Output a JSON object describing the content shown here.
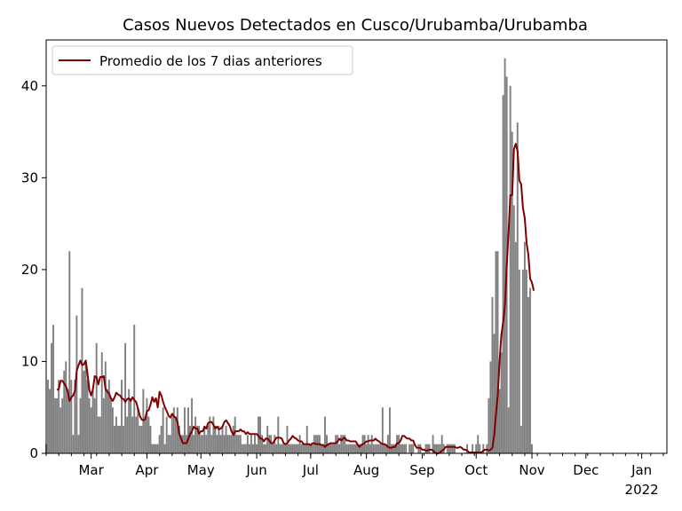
{
  "chart_data": {
    "type": "bar",
    "title": "Casos Nuevos Detectados en Cusco/Urubamba/Urubamba",
    "xlabel": "",
    "ylabel": "",
    "ylim": [
      0,
      45
    ],
    "y_ticks": [
      0,
      10,
      20,
      30,
      40
    ],
    "x_range_days": [
      0,
      345
    ],
    "x_ticks": [
      {
        "label": "Mar",
        "day": 25
      },
      {
        "label": "Apr",
        "day": 56
      },
      {
        "label": "May",
        "day": 86
      },
      {
        "label": "Jun",
        "day": 117
      },
      {
        "label": "Jul",
        "day": 147
      },
      {
        "label": "Aug",
        "day": 178
      },
      {
        "label": "Sep",
        "day": 209
      },
      {
        "label": "Oct",
        "day": 239
      },
      {
        "label": "Nov",
        "day": 270
      },
      {
        "label": "Dec",
        "day": 300
      },
      {
        "label": "Jan",
        "day": 331
      }
    ],
    "year_label": "2022",
    "year_label_day": 331,
    "grid": false,
    "legend_position": "top-left",
    "colors": {
      "bars": "#808080",
      "line": "#800000"
    },
    "series": [
      {
        "kind": "bar",
        "start_day": 0,
        "values": [
          1,
          8,
          7,
          12,
          14,
          6,
          6,
          8,
          5,
          6,
          9,
          10,
          7,
          22,
          8,
          2,
          8,
          15,
          2,
          6,
          18,
          9,
          10,
          8,
          6,
          5,
          7,
          6,
          12,
          4,
          4,
          11,
          6,
          10,
          7,
          8,
          6,
          5,
          3,
          4,
          3,
          3,
          8,
          3,
          12,
          4,
          7,
          6,
          4,
          14,
          4,
          5,
          3,
          3,
          7,
          4,
          6,
          4,
          3,
          1,
          1,
          1,
          1,
          2,
          3,
          5,
          1,
          4,
          2,
          2,
          4,
          5,
          4,
          5,
          3,
          2,
          2,
          5,
          2,
          5,
          3,
          6,
          2,
          4,
          3,
          3,
          2,
          2,
          3,
          2,
          3,
          4,
          2,
          4,
          3,
          2,
          3,
          2,
          3,
          2,
          3,
          2,
          2,
          2,
          3,
          4,
          2,
          2,
          2,
          1,
          1,
          1,
          2,
          1,
          2,
          1,
          2,
          1,
          4,
          4,
          2,
          1,
          1,
          3,
          2,
          2,
          1,
          2,
          1,
          4,
          1,
          1,
          1,
          1,
          3,
          1,
          1,
          1,
          1,
          1,
          1,
          2,
          1,
          1,
          1,
          3,
          1,
          1,
          1,
          2,
          2,
          2,
          2,
          1,
          1,
          4,
          2,
          1,
          1,
          1,
          1,
          2,
          2,
          1,
          2,
          2,
          2,
          1,
          1,
          1,
          1,
          1,
          1,
          1,
          1,
          1,
          2,
          2,
          1,
          2,
          1,
          2,
          1,
          1,
          1,
          1,
          1,
          5,
          1,
          1,
          2,
          5,
          1,
          1,
          1,
          2,
          2,
          1,
          1,
          1,
          1,
          0,
          1,
          1,
          1,
          0,
          0,
          1,
          1,
          0,
          0,
          1,
          1,
          1,
          0,
          2,
          1,
          1,
          1,
          1,
          2,
          1,
          0,
          1,
          1,
          1,
          1,
          1,
          0,
          0,
          0,
          0,
          0,
          0,
          1,
          0,
          0,
          1,
          0,
          1,
          2,
          1,
          0,
          1,
          0,
          1,
          6,
          10,
          17,
          13,
          22,
          22,
          7,
          11,
          39,
          43,
          41,
          5,
          40,
          35,
          27,
          23,
          36,
          20,
          3,
          20,
          23,
          20,
          17,
          18,
          1
        ],
        "index_offset": 0
      },
      {
        "kind": "line",
        "name": "Promedio de los 7 dias anteriores",
        "start_day": 6,
        "values": [
          6.9,
          7.0,
          7.9,
          7.9,
          7.6,
          7.3,
          6.7,
          5.7,
          6.1,
          6.3,
          6.8,
          9.0,
          9.6,
          10.1,
          9.6,
          9.7,
          10.1,
          8.6,
          6.9,
          6.3,
          7.0,
          8.4,
          8.3,
          7.5,
          8.3,
          8.3,
          8.4,
          7.0,
          6.7,
          6.5,
          6.0,
          5.7,
          6.1,
          6.6,
          6.4,
          6.3,
          6.0,
          5.9,
          5.6,
          5.9,
          6.0,
          5.7,
          6.1,
          5.8,
          5.6,
          4.9,
          4.1,
          3.7,
          3.6,
          3.7,
          4.6,
          4.7,
          5.3,
          6.1,
          5.6,
          6.0,
          5.0,
          6.7,
          6.3,
          5.6,
          5.0,
          4.6,
          4.1,
          3.9,
          4.3,
          4.0,
          3.9,
          3.4,
          2.1,
          1.6,
          1.1,
          1.1,
          1.1,
          1.6,
          2.1,
          2.4,
          2.9,
          2.7,
          2.7,
          2.1,
          2.4,
          2.4,
          2.9,
          2.7,
          3.3,
          3.4,
          3.4,
          3.1,
          2.7,
          2.9,
          2.6,
          2.7,
          2.9,
          3.4,
          3.6,
          3.3,
          3.0,
          2.4,
          2.0,
          2.4,
          2.4,
          2.4,
          2.6,
          2.4,
          2.4,
          2.1,
          2.3,
          2.1,
          2.1,
          2.1,
          2.1,
          2.1,
          1.9,
          1.6,
          1.6,
          1.3,
          1.6,
          1.6,
          1.4,
          1.1,
          1.1,
          1.4,
          1.7,
          1.7,
          1.7,
          1.6,
          1.1,
          1.0,
          1.1,
          1.4,
          1.6,
          1.9,
          1.7,
          1.6,
          1.4,
          1.3,
          1.3,
          1.0,
          1.0,
          1.0,
          1.0,
          0.9,
          1.1,
          1.1,
          1.0,
          1.0,
          1.0,
          0.9,
          0.9,
          0.7,
          0.9,
          1.0,
          1.1,
          1.1,
          1.1,
          1.1,
          1.3,
          1.6,
          1.4,
          1.6,
          1.7,
          1.4,
          1.4,
          1.3,
          1.3,
          1.3,
          1.3,
          1.0,
          0.7,
          0.9,
          1.0,
          1.1,
          1.3,
          1.3,
          1.4,
          1.4,
          1.4,
          1.6,
          1.4,
          1.3,
          1.1,
          1.0,
          1.0,
          0.9,
          0.7,
          0.6,
          0.6,
          0.7,
          0.7,
          1.1,
          1.1,
          1.4,
          1.9,
          1.9,
          1.7,
          1.6,
          1.6,
          1.4,
          1.4,
          0.9,
          0.6,
          0.6,
          0.6,
          0.4,
          0.4,
          0.3,
          0.3,
          0.4,
          0.4,
          0.3,
          0.1,
          0.0,
          0.0,
          0.1,
          0.3,
          0.4,
          0.7,
          0.7,
          0.7,
          0.7,
          0.7,
          0.7,
          0.6,
          0.6,
          0.7,
          0.6,
          0.4,
          0.4,
          0.3,
          0.1,
          0.1,
          0.1,
          0.1,
          0.1,
          0.1,
          0.1,
          0.1,
          0.3,
          0.4,
          0.4,
          0.3,
          0.4,
          0.6,
          2.0,
          4.3,
          6.4,
          10.0,
          12.9,
          14.3,
          16.1,
          20.4,
          24.1,
          28.1,
          28.1,
          33.1,
          33.7,
          32.9,
          29.7,
          29.3,
          26.7,
          25.6,
          22.9,
          21.6,
          19.0,
          18.6,
          17.7
        ]
      }
    ]
  }
}
